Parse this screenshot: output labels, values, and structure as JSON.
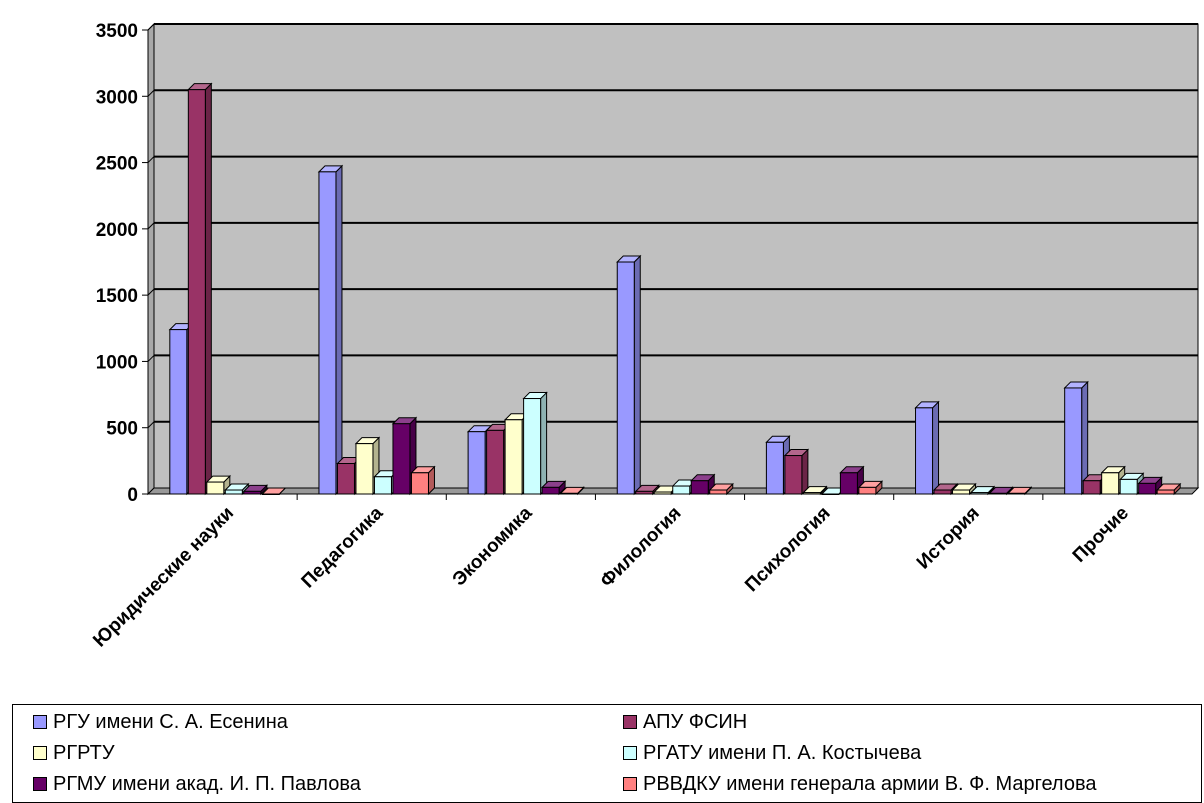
{
  "chart_data": {
    "type": "bar",
    "categories": [
      "Юридические науки",
      "Педагогика",
      "Экономика",
      "Филология",
      "Психология",
      "История",
      "Прочие"
    ],
    "ylim": [
      0,
      3500
    ],
    "yticks": [
      0,
      500,
      1000,
      1500,
      2000,
      2500,
      3000,
      3500
    ],
    "grid": true,
    "legend_position": "bottom",
    "series": [
      {
        "name": "РГУ имени С. А. Есенина",
        "color": "#9999FF",
        "values": [
          1240,
          2430,
          470,
          1750,
          390,
          650,
          800
        ]
      },
      {
        "name": "АПУ ФСИН",
        "color": "#993366",
        "values": [
          3050,
          230,
          480,
          20,
          290,
          30,
          100
        ]
      },
      {
        "name": "РГРТУ",
        "color": "#FFFFCC",
        "values": [
          90,
          380,
          560,
          15,
          10,
          30,
          160
        ]
      },
      {
        "name": "РГАТУ имени П. А. Костычева",
        "color": "#CCFFFF",
        "values": [
          30,
          130,
          720,
          60,
          0,
          10,
          110
        ]
      },
      {
        "name": "РГМУ имени акад. И. П. Павлова",
        "color": "#660066",
        "values": [
          20,
          530,
          50,
          100,
          160,
          5,
          80
        ]
      },
      {
        "name": "РВВДКУ имени генерала армии В. Ф. Маргелова",
        "color": "#FF8080",
        "values": [
          0,
          160,
          5,
          30,
          50,
          5,
          30
        ]
      }
    ]
  }
}
